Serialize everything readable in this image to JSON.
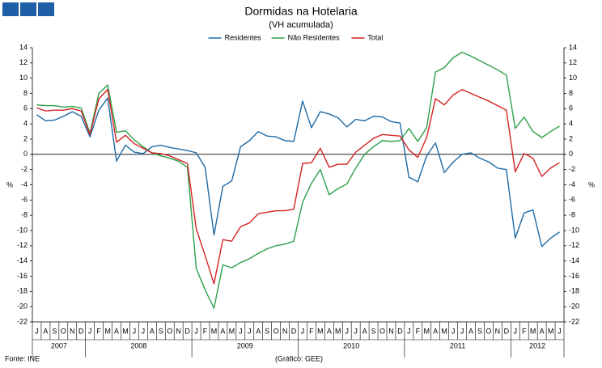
{
  "chart_data": {
    "type": "line",
    "title": "Dormidas na Hotelaria",
    "subtitle": "(VH acumulada)",
    "ylabel": "%",
    "y2label": "%",
    "source": "Fonte: INE",
    "credit": "(Gráfico: GEE)",
    "groups": [
      {
        "label": "2007",
        "categories": [
          "J",
          "A",
          "S",
          "O",
          "N",
          "D"
        ]
      },
      {
        "label": "2008",
        "categories": [
          "J",
          "F",
          "M",
          "A",
          "M",
          "J",
          "J",
          "A",
          "S",
          "O",
          "N",
          "D"
        ]
      },
      {
        "label": "2009",
        "categories": [
          "J",
          "F",
          "M",
          "A",
          "M",
          "J",
          "J",
          "A",
          "S",
          "O",
          "N",
          "D"
        ]
      },
      {
        "label": "2010",
        "categories": [
          "J",
          "F",
          "M",
          "A",
          "M",
          "J",
          "J",
          "A",
          "S",
          "O",
          "N",
          "D"
        ]
      },
      {
        "label": "2011",
        "categories": [
          "J",
          "F",
          "M",
          "A",
          "M",
          "J",
          "J",
          "A",
          "S",
          "O",
          "N",
          "D"
        ]
      },
      {
        "label": "2012",
        "categories": [
          "J",
          "F",
          "M",
          "A",
          "M",
          "J"
        ]
      }
    ],
    "series": [
      {
        "name": "Residentes",
        "color": "#1f6aa5",
        "values": [
          5.2,
          4.4,
          4.5,
          5.0,
          5.6,
          5.0,
          2.3,
          5.8,
          7.4,
          -0.9,
          1.2,
          0.3,
          0.1,
          1.0,
          1.2,
          0.9,
          0.7,
          0.5,
          0.2,
          -1.7,
          -10.6,
          -4.2,
          -3.5,
          1.0,
          1.8,
          3.0,
          2.4,
          2.3,
          1.8,
          1.7,
          7.0,
          3.5,
          5.6,
          5.3,
          4.8,
          3.6,
          4.6,
          4.4,
          5.0,
          4.9,
          4.3,
          4.1,
          -3.0,
          -3.6,
          -0.2,
          1.5,
          -2.4,
          -1.0,
          0.0,
          0.2,
          -0.5,
          -1.0,
          -1.8,
          -2.0,
          -11.0,
          -7.7,
          -7.3,
          -12.1,
          -11.0,
          -10.2
        ]
      },
      {
        "name": "Não Residentes",
        "color": "#2ea04a",
        "values": [
          6.5,
          6.4,
          6.4,
          6.2,
          6.3,
          6.1,
          2.8,
          8.0,
          9.1,
          2.9,
          3.1,
          1.9,
          1.0,
          0.2,
          -0.2,
          -0.5,
          -0.9,
          -1.7,
          -15.0,
          -17.8,
          -20.2,
          -14.5,
          -14.9,
          -14.2,
          -13.7,
          -13.0,
          -12.4,
          -12.0,
          -11.8,
          -11.4,
          -6.3,
          -3.8,
          -2.0,
          -5.3,
          -4.5,
          -3.9,
          -1.8,
          0.0,
          1.0,
          1.8,
          1.7,
          1.8,
          3.4,
          1.7,
          3.5,
          10.8,
          11.4,
          12.7,
          13.4,
          12.9,
          12.3,
          11.7,
          11.1,
          10.4,
          3.4,
          4.9,
          3.0,
          2.2,
          3.0,
          3.7
        ]
      },
      {
        "name": "Total",
        "color": "#d42222",
        "values": [
          6.1,
          5.7,
          5.8,
          5.8,
          6.0,
          5.7,
          2.6,
          7.3,
          8.5,
          1.6,
          2.5,
          1.4,
          0.8,
          0.2,
          0.1,
          -0.2,
          -0.7,
          -1.2,
          -9.8,
          -13.3,
          -17.0,
          -11.2,
          -11.4,
          -9.5,
          -9.0,
          -7.8,
          -7.6,
          -7.4,
          -7.4,
          -7.2,
          -1.2,
          -1.1,
          0.8,
          -1.7,
          -1.3,
          -1.3,
          0.3,
          1.2,
          2.1,
          2.6,
          2.5,
          2.4,
          0.6,
          -0.4,
          2.2,
          7.3,
          6.5,
          7.8,
          8.5,
          8.0,
          7.5,
          7.0,
          6.4,
          5.8,
          -2.3,
          0.1,
          -0.5,
          -2.9,
          -1.8,
          -1.1
        ]
      }
    ],
    "ylim": [
      -22,
      14
    ],
    "yticks": [
      -22,
      -20,
      -18,
      -16,
      -14,
      -12,
      -10,
      -8,
      -6,
      -4,
      -2,
      0,
      2,
      4,
      6,
      8,
      10,
      12,
      14
    ],
    "y2lim": [
      -22,
      14
    ],
    "y2ticks": [
      -22,
      -20,
      -18,
      -16,
      -14,
      -12,
      -10,
      -8,
      -6,
      -4,
      -2,
      0,
      2,
      4,
      6,
      8,
      10,
      12,
      14
    ],
    "grid": false,
    "legend": "top"
  }
}
